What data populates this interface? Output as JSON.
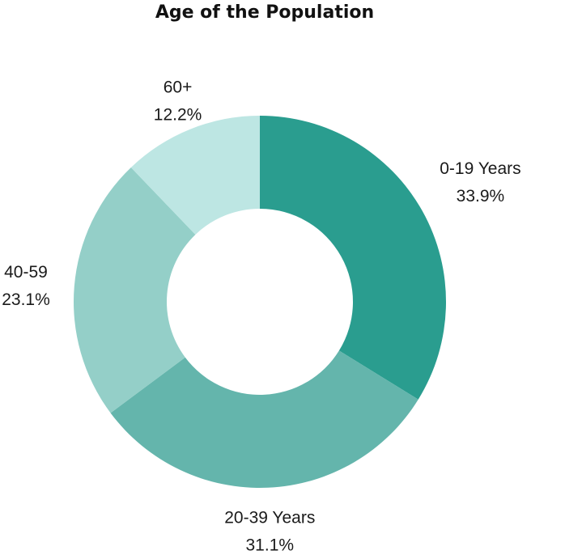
{
  "chart_data": {
    "type": "pie",
    "donut": true,
    "title": "Age of the Population",
    "categories": [
      "0-19 Years",
      "20-39 Years",
      "40-59",
      "60+"
    ],
    "values": [
      33.9,
      31.1,
      23.1,
      12.2
    ],
    "value_labels": [
      "33.9%",
      "31.1%",
      "23.1%",
      "12.2%"
    ],
    "colors": [
      "#2a9d8f",
      "#64b5ac",
      "#94cfc8",
      "#bde6e3"
    ],
    "legend": "none"
  }
}
